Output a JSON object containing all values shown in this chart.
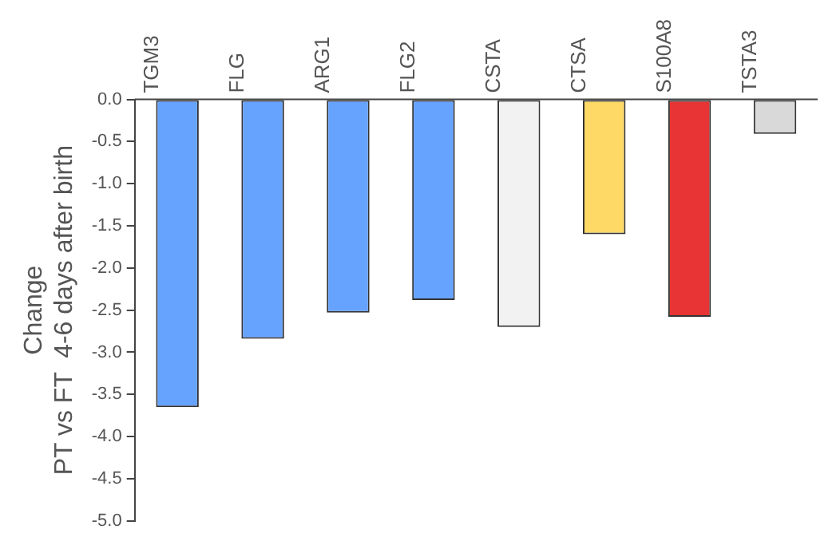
{
  "chart_data": {
    "type": "bar",
    "ylabel": "Change\nPT vs FT  4-6 days after birth",
    "categories": [
      "TGM3",
      "FLG",
      "ARG1",
      "FLG2",
      "CSTA",
      "CTSA",
      "S100A8",
      "TSTA3"
    ],
    "values": [
      -3.65,
      -2.84,
      -2.53,
      -2.38,
      -2.7,
      -1.6,
      -2.58,
      -0.41
    ],
    "colors": [
      "#66a3ff",
      "#66a3ff",
      "#66a3ff",
      "#66a3ff",
      "#f2f2f2",
      "#ffd966",
      "#e83434",
      "#d9d9d9"
    ],
    "ylim": [
      -5,
      0
    ],
    "yticks": [
      {
        "value": -5,
        "label": "-5.0"
      },
      {
        "value": -4.5,
        "label": "-4.5"
      },
      {
        "value": -4,
        "label": "-4.0"
      },
      {
        "value": -3.5,
        "label": "-3.5"
      },
      {
        "value": -3,
        "label": "-3.0"
      },
      {
        "value": -2.5,
        "label": "-2.5"
      },
      {
        "value": -2,
        "label": "-2.0"
      },
      {
        "value": -1.5,
        "label": "-1.5"
      },
      {
        "value": -1,
        "label": "-1.0"
      },
      {
        "value": -0.5,
        "label": "-0.5"
      },
      {
        "value": 0,
        "label": "0.0"
      }
    ],
    "grid": false,
    "legend": false
  }
}
